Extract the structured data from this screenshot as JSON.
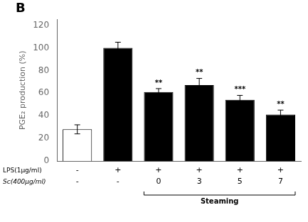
{
  "chart_data": {
    "type": "bar",
    "title": "B",
    "ylabel": "PGE₂ production (%)",
    "categories": [
      null,
      null,
      null,
      null,
      null,
      null
    ],
    "values": [
      28,
      100,
      61,
      67,
      54,
      41
    ],
    "errors": [
      4,
      5,
      3,
      6,
      4,
      4
    ],
    "colors": [
      "white",
      "black",
      "black",
      "black",
      "black",
      "black"
    ],
    "significance": [
      null,
      null,
      "**",
      "**",
      "***",
      "**"
    ],
    "rows": [
      {
        "label": "LPS(1μg/ml)",
        "values": [
          "-",
          "+",
          "+",
          "+",
          "+",
          "+"
        ]
      },
      {
        "label": "Sc(400μg/ml)",
        "values": [
          "-",
          "-",
          "0",
          "3",
          "5",
          "7"
        ]
      }
    ],
    "bracket": {
      "label": "Steaming",
      "from": 2,
      "to": 5
    },
    "ylim": [
      0,
      125
    ],
    "yticks": [
      0,
      20,
      40,
      60,
      80,
      100,
      120
    ],
    "grid": false,
    "tick_labels": "y"
  }
}
